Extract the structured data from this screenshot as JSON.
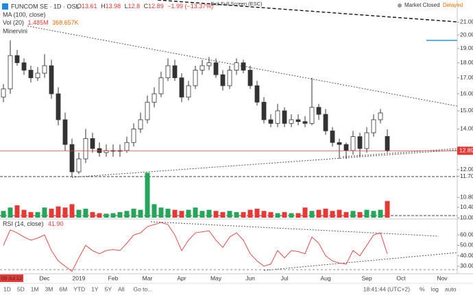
{
  "header": {
    "symbol": "FUNCOM SE · 1D · OSL",
    "ohlc_labels": [
      "O",
      "H",
      "L",
      "C"
    ],
    "change": "−1.99 (−13.37%)",
    "indicators": [
      "MA (100, close)",
      "Vol (20)",
      "Minervini"
    ],
    "volume_values": [
      "1.485M",
      "368.657K"
    ],
    "exit": "Exit Full Screen (ESC)",
    "status": "Market Closed",
    "delay": "Delayed"
  },
  "crosshair_date": "09 Jul 12",
  "chart_data": [
    {
      "type": "candlestick",
      "log": true,
      "up_color": "#ffffff",
      "down_color": "#333333",
      "last_color": "#e53935",
      "categories": [
        null,
        null,
        null,
        null,
        null,
        null,
        "Dec",
        null,
        null,
        null,
        null,
        "2019",
        null,
        null,
        null,
        null,
        "Feb",
        null,
        null,
        null,
        null,
        "Mar",
        null,
        null,
        null,
        null,
        "Apr",
        null,
        null,
        null,
        null,
        "May",
        null,
        null,
        null,
        null,
        "Jun",
        null,
        null,
        null,
        null,
        "Jul",
        null,
        null,
        null,
        null,
        null,
        "Aug",
        null,
        null,
        null,
        null,
        null,
        "Sep",
        null,
        null,
        null,
        null,
        "Oct",
        null,
        null,
        null,
        null,
        null,
        "Nov",
        null,
        null
      ],
      "open": [
        15.8,
        16.3,
        18.5,
        18.0,
        17.5,
        17.0,
        17.3,
        17.8,
        16.0,
        14.5,
        13.2,
        11.9,
        12.5,
        13.5,
        13.0,
        12.8,
        12.9,
        12.9,
        12.9,
        13.3,
        14.0,
        14.5,
        15.5,
        16.0,
        17.0,
        17.8,
        17.0,
        15.8,
        16.5,
        17.5,
        17.8,
        18.0,
        17.2,
        16.5,
        17.5,
        18.0,
        17.5,
        16.5,
        15.5,
        14.5,
        14.3,
        15.0,
        14.3,
        14.5,
        14.4,
        14.3,
        15.2,
        14.8,
        13.9,
        13.3,
        13.2,
        12.9,
        13.6,
        13.0,
        13.8,
        14.5,
        13.61,
        null,
        null,
        null,
        null,
        null,
        null,
        null,
        null,
        null,
        null
      ],
      "high": [
        16.6,
        19.6,
        18.9,
        18.3,
        17.8,
        17.7,
        18.6,
        18.2,
        16.4,
        14.9,
        13.5,
        12.8,
        14.0,
        13.8,
        13.3,
        13.2,
        13.2,
        13.2,
        13.6,
        14.3,
        14.9,
        15.9,
        16.4,
        17.4,
        18.3,
        18.2,
        17.3,
        16.8,
        17.8,
        18.2,
        18.4,
        18.3,
        17.5,
        17.8,
        18.3,
        18.2,
        17.8,
        16.8,
        15.8,
        14.8,
        15.4,
        15.2,
        14.8,
        14.8,
        14.7,
        17.0,
        15.4,
        15.1,
        14.1,
        13.5,
        13.3,
        13.9,
        13.8,
        14.1,
        14.8,
        15.1,
        13.98,
        null,
        null,
        null,
        null,
        null,
        null,
        null,
        null,
        null,
        null
      ],
      "low": [
        15.5,
        16.0,
        17.8,
        17.2,
        16.7,
        16.8,
        17.0,
        15.7,
        14.2,
        12.9,
        11.7,
        11.8,
        12.3,
        12.8,
        12.6,
        12.6,
        12.6,
        12.6,
        12.8,
        13.1,
        13.8,
        14.3,
        15.2,
        15.8,
        16.8,
        16.8,
        15.5,
        15.6,
        16.3,
        17.2,
        17.5,
        17.0,
        16.2,
        16.3,
        17.2,
        17.3,
        16.3,
        15.3,
        14.3,
        14.1,
        14.1,
        14.1,
        14.1,
        14.2,
        14.1,
        14.2,
        14.5,
        13.7,
        13.1,
        12.5,
        12.5,
        12.7,
        12.6,
        12.8,
        13.6,
        14.3,
        12.8,
        null,
        null,
        null,
        null,
        null,
        null,
        null,
        null,
        null,
        null
      ],
      "close": [
        16.3,
        18.5,
        18.0,
        17.5,
        17.0,
        17.3,
        17.8,
        16.0,
        14.5,
        13.2,
        11.9,
        12.5,
        13.5,
        13.0,
        12.8,
        12.9,
        12.9,
        12.9,
        13.3,
        14.0,
        14.5,
        15.5,
        16.0,
        17.0,
        17.8,
        17.0,
        15.8,
        16.5,
        17.5,
        17.8,
        18.0,
        17.2,
        16.5,
        17.5,
        18.0,
        17.5,
        16.5,
        15.5,
        14.5,
        14.3,
        15.0,
        14.3,
        14.5,
        14.4,
        14.3,
        15.2,
        14.8,
        13.9,
        13.3,
        13.2,
        12.9,
        13.6,
        13.0,
        13.8,
        14.5,
        14.88,
        12.89,
        null,
        null,
        null,
        null,
        null,
        null,
        null,
        null,
        null,
        null
      ],
      "ylim": [
        10,
        22.84
      ],
      "yticks": [
        {
          "value": 21,
          "label": "21.00"
        },
        {
          "value": 20,
          "label": "20.00"
        },
        {
          "value": 19,
          "label": "19.00"
        },
        {
          "value": 18,
          "label": "18.00"
        },
        {
          "value": 17,
          "label": "17.00"
        },
        {
          "value": 16,
          "label": "16.00"
        },
        {
          "value": 15,
          "label": "15.00"
        },
        {
          "value": 14,
          "label": "14.00"
        },
        {
          "value": 12,
          "label": "12.00"
        },
        {
          "value": 11.7,
          "label": "11.70"
        },
        {
          "value": 10.8,
          "label": "10.80"
        },
        {
          "value": 10.4,
          "label": "10.40"
        },
        {
          "value": 10,
          "label": "10.00"
        }
      ]
    },
    {
      "type": "bar",
      "up_color": "#26a65b",
      "down_color": "#e53935",
      "values": [
        600000,
        900000,
        1100000,
        700000,
        500000,
        500000,
        900000,
        800000,
        1000000,
        900000,
        1200000,
        700000,
        800000,
        500000,
        400000,
        350000,
        400000,
        500000,
        600000,
        800000,
        700000,
        4000000,
        1200000,
        900000,
        800000,
        700000,
        600000,
        700000,
        900000,
        600000,
        700000,
        600000,
        500000,
        600000,
        500000,
        500000,
        700000,
        800000,
        600000,
        500000,
        400000,
        500000,
        400000,
        400000,
        900000,
        600000,
        700000,
        800000,
        600000,
        700000,
        500000,
        600000,
        500000,
        700000,
        600000,
        700000,
        1485000,
        null,
        null,
        null,
        null,
        null,
        null,
        null,
        null,
        null,
        null
      ],
      "ylim": [
        0,
        5000000
      ]
    },
    {
      "type": "line",
      "name": "RSI (14, close)",
      "value_label": "41.90",
      "color": "#e53935",
      "values": [
        50,
        65,
        62,
        58,
        55,
        57,
        60,
        45,
        35,
        30,
        25,
        38,
        50,
        45,
        42,
        45,
        46,
        45,
        52,
        60,
        62,
        68,
        70,
        72,
        70,
        60,
        45,
        55,
        62,
        63,
        64,
        55,
        48,
        58,
        62,
        55,
        42,
        35,
        30,
        32,
        45,
        38,
        45,
        44,
        42,
        58,
        52,
        40,
        35,
        33,
        32,
        45,
        40,
        50,
        60,
        62,
        41.9,
        null,
        null,
        null,
        null,
        null,
        null,
        null,
        null,
        null,
        null
      ],
      "ylim": [
        24,
        74
      ],
      "yticks": [
        {
          "value": 60,
          "label": "60.00"
        },
        {
          "value": 50,
          "label": "50.00"
        },
        {
          "value": 40,
          "label": "40.00"
        },
        {
          "value": 30,
          "label": "30.00"
        }
      ]
    }
  ],
  "footer": {
    "ranges": [
      "1D",
      "5D",
      "1M",
      "3M",
      "6M",
      "YTD",
      "1Y",
      "5Y",
      "All"
    ],
    "goto": "Go to...",
    "time": "18:41:44 (UTC+2)",
    "options": [
      "%",
      "log",
      "auto"
    ]
  }
}
